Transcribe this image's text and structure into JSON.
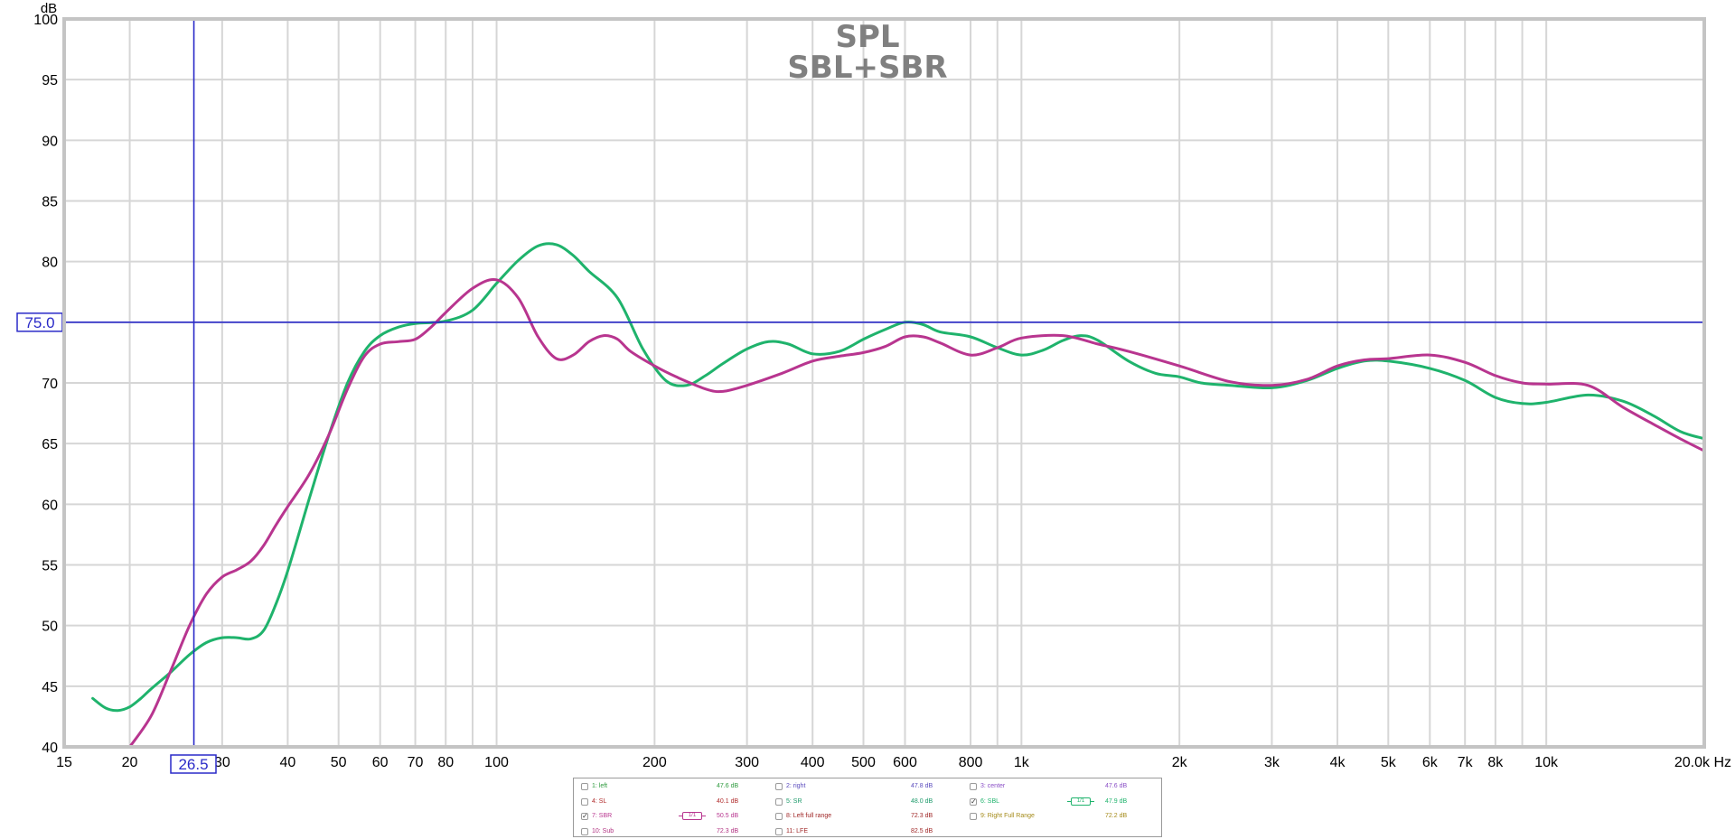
{
  "chart_data": {
    "type": "line",
    "title": "SPL",
    "subtitle": "SBL+SBR",
    "ylabel": "dB",
    "xunit": "Hz",
    "xscale": "log",
    "xlim": [
      15,
      20000
    ],
    "ylim": [
      40,
      100
    ],
    "grid": true,
    "x_ticks": [
      {
        "v": 15,
        "t": "15"
      },
      {
        "v": 20,
        "t": "20"
      },
      {
        "v": 30,
        "t": "30"
      },
      {
        "v": 40,
        "t": "40"
      },
      {
        "v": 50,
        "t": "50"
      },
      {
        "v": 60,
        "t": "60"
      },
      {
        "v": 70,
        "t": "70"
      },
      {
        "v": 80,
        "t": "80"
      },
      {
        "v": 100,
        "t": "100"
      },
      {
        "v": 200,
        "t": "200"
      },
      {
        "v": 300,
        "t": "300"
      },
      {
        "v": 400,
        "t": "400"
      },
      {
        "v": 500,
        "t": "500"
      },
      {
        "v": 600,
        "t": "600"
      },
      {
        "v": 800,
        "t": "800"
      },
      {
        "v": 1000,
        "t": "1k"
      },
      {
        "v": 2000,
        "t": "2k"
      },
      {
        "v": 3000,
        "t": "3k"
      },
      {
        "v": 4000,
        "t": "4k"
      },
      {
        "v": 5000,
        "t": "5k"
      },
      {
        "v": 6000,
        "t": "6k"
      },
      {
        "v": 7000,
        "t": "7k"
      },
      {
        "v": 8000,
        "t": "8k"
      },
      {
        "v": 10000,
        "t": "10k"
      },
      {
        "v": 20000,
        "t": "20.0k Hz"
      }
    ],
    "x_minor_gridlines": [
      90,
      900,
      9000
    ],
    "y_ticks": [
      40,
      45,
      50,
      55,
      60,
      65,
      70,
      75,
      80,
      85,
      90,
      95,
      100
    ],
    "cursor": {
      "x": 26.5,
      "x_label": "26.5",
      "y": 75.0,
      "y_label": "75.0",
      "color": "#2a2ac8"
    },
    "series": [
      {
        "name": "6: SBL",
        "color": "#1fb36c",
        "x": [
          17,
          18,
          19,
          20,
          21,
          22,
          24,
          26,
          28,
          30,
          32,
          34,
          36,
          38,
          40,
          44,
          48,
          52,
          56,
          60,
          65,
          70,
          80,
          90,
          100,
          110,
          120,
          130,
          140,
          150,
          170,
          190,
          210,
          230,
          250,
          270,
          300,
          330,
          360,
          400,
          450,
          500,
          550,
          600,
          650,
          700,
          800,
          900,
          1000,
          1100,
          1200,
          1300,
          1400,
          1600,
          1800,
          2000,
          2200,
          2500,
          3000,
          3500,
          4000,
          4500,
          5000,
          6000,
          7000,
          8000,
          9000,
          10000,
          12000,
          14000,
          16000,
          18000,
          20000
        ],
        "y": [
          44.0,
          43.2,
          43.0,
          43.3,
          44.0,
          44.8,
          46.2,
          47.6,
          48.6,
          49.0,
          49.0,
          48.9,
          49.6,
          51.8,
          54.5,
          60.5,
          65.8,
          70.0,
          72.6,
          73.9,
          74.6,
          74.9,
          75.1,
          76.0,
          78.2,
          80.1,
          81.3,
          81.4,
          80.5,
          79.2,
          77.0,
          72.8,
          70.2,
          69.8,
          70.6,
          71.6,
          72.8,
          73.4,
          73.2,
          72.4,
          72.6,
          73.6,
          74.4,
          75.0,
          74.8,
          74.2,
          73.8,
          72.9,
          72.3,
          72.7,
          73.5,
          73.9,
          73.5,
          71.8,
          70.8,
          70.5,
          70.0,
          69.8,
          69.6,
          70.2,
          71.2,
          71.8,
          71.8,
          71.2,
          70.2,
          68.8,
          68.3,
          68.4,
          69.0,
          68.5,
          67.3,
          66.0,
          65.4
        ]
      },
      {
        "name": "7: SBR",
        "color": "#b8358f",
        "x": [
          20,
          22,
          24,
          26,
          28,
          30,
          32,
          34,
          36,
          38,
          40,
          44,
          48,
          52,
          56,
          60,
          65,
          70,
          75,
          80,
          90,
          100,
          110,
          120,
          130,
          140,
          150,
          160,
          170,
          180,
          200,
          220,
          250,
          270,
          300,
          350,
          400,
          450,
          500,
          550,
          600,
          650,
          700,
          800,
          900,
          1000,
          1200,
          1400,
          1600,
          2000,
          2500,
          3000,
          3500,
          4000,
          4500,
          5000,
          6000,
          7000,
          8000,
          9000,
          10000,
          12000,
          14000,
          16000,
          18000,
          20000
        ],
        "y": [
          40.0,
          42.6,
          46.4,
          50.0,
          52.6,
          54.0,
          54.6,
          55.3,
          56.6,
          58.3,
          59.8,
          62.5,
          65.8,
          69.5,
          72.2,
          73.2,
          73.4,
          73.6,
          74.6,
          75.8,
          77.8,
          78.5,
          77.0,
          73.8,
          72.0,
          72.3,
          73.4,
          73.9,
          73.6,
          72.6,
          71.4,
          70.5,
          69.5,
          69.3,
          69.8,
          70.8,
          71.8,
          72.2,
          72.5,
          73.0,
          73.8,
          73.8,
          73.3,
          72.3,
          72.9,
          73.7,
          73.9,
          73.2,
          72.6,
          71.4,
          70.1,
          69.8,
          70.3,
          71.4,
          71.9,
          72.0,
          72.3,
          71.7,
          70.6,
          70.0,
          69.9,
          69.8,
          68.0,
          66.6,
          65.4,
          64.4
        ]
      }
    ]
  },
  "legend": {
    "items": [
      {
        "label": "1: left",
        "value": "47.6 dB",
        "color": "#2e9a3e",
        "checked": false
      },
      {
        "label": "2: right",
        "value": "47.8 dB",
        "color": "#5a4bbd",
        "checked": false
      },
      {
        "label": "3: center",
        "value": "47.6 dB",
        "color": "#8a4fc6",
        "checked": false
      },
      {
        "label": "4: SL",
        "value": "40.1 dB",
        "color": "#b02a2a",
        "checked": false
      },
      {
        "label": "5: SR",
        "value": "48.0 dB",
        "color": "#1c9a6a",
        "checked": false
      },
      {
        "label": "6: SBL",
        "value": "47.9 dB",
        "color": "#1fb36c",
        "checked": true,
        "smoothing": "1/1"
      },
      {
        "label": "7: SBR",
        "value": "50.5 dB",
        "color": "#b8358f",
        "checked": true,
        "smoothing": "1/1"
      },
      {
        "label": "8: Left full range",
        "value": "72.3 dB",
        "color": "#a02828",
        "checked": false
      },
      {
        "label": "9: Right Full Range",
        "value": "72.2 dB",
        "color": "#a48a18",
        "checked": false
      },
      {
        "label": "10: Sub",
        "value": "72.3 dB",
        "color": "#b03080",
        "checked": false
      },
      {
        "label": "11: LFE",
        "value": "82.5 dB",
        "color": "#a02828",
        "checked": false
      }
    ]
  }
}
